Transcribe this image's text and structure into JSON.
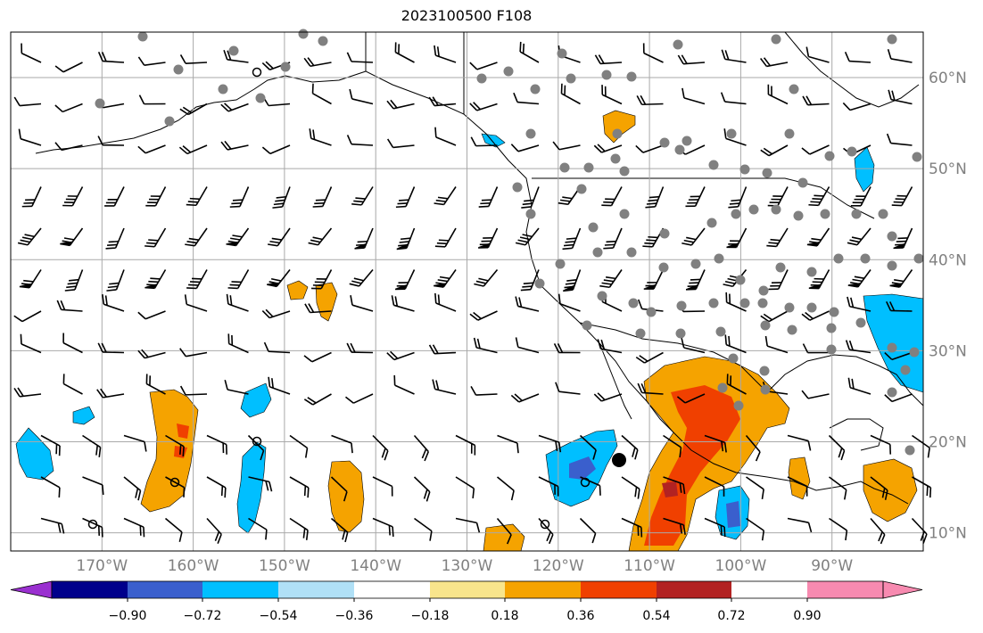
{
  "title": "2023100500 F108",
  "map": {
    "lon_range": [
      -180,
      -80
    ],
    "lat_range": [
      8,
      65
    ],
    "lon_ticks": [
      "170°W",
      "160°W",
      "150°W",
      "140°W",
      "130°W",
      "120°W",
      "110°W",
      "100°W",
      "90°W"
    ],
    "lat_ticks": [
      "60°N",
      "50°N",
      "40°N",
      "30°N",
      "20°N",
      "10°N"
    ],
    "grid": true,
    "field": "shaded anomaly with wind barbs and station markers"
  },
  "colorbar": {
    "tick_labels": [
      "−0.90",
      "−0.72",
      "−0.54",
      "−0.36",
      "−0.18",
      "0.18",
      "0.36",
      "0.54",
      "0.72",
      "0.90"
    ],
    "colors": [
      "#9a30d0",
      "#00008b",
      "#3a5fcd",
      "#00bfff",
      "#b0e0f6",
      "#ffffff",
      "#f8e58c",
      "#f5a300",
      "#f04000",
      "#b22222",
      "#f78ab0"
    ],
    "extend": "both"
  },
  "legend_colors": {
    "coast": "#000000",
    "grid": "#a9a9a9",
    "station": "#808080",
    "tick_text": "#808080"
  }
}
